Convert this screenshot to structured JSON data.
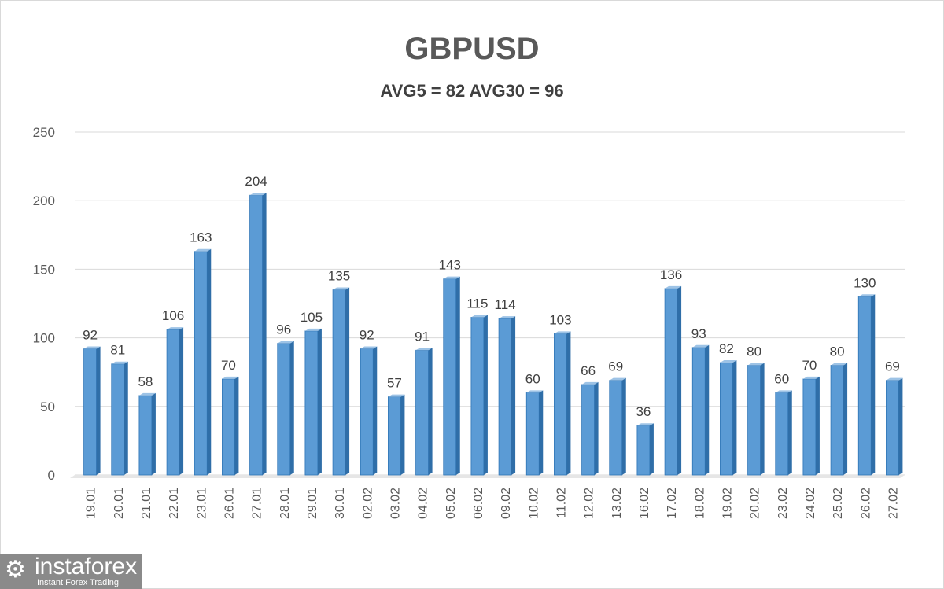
{
  "chart_data": {
    "type": "bar",
    "title": "GBPUSD",
    "subtitle": "AVG5 = 82 AVG30 = 96",
    "categories": [
      "19.01",
      "20.01",
      "21.01",
      "22.01",
      "23.01",
      "26.01",
      "27.01",
      "28.01",
      "29.01",
      "30.01",
      "02.02",
      "03.02",
      "04.02",
      "05.02",
      "06.02",
      "09.02",
      "10.02",
      "11.02",
      "12.02",
      "13.02",
      "16.02",
      "17.02",
      "18.02",
      "19.02",
      "20.02",
      "23.02",
      "24.02",
      "25.02",
      "26.02",
      "27.02"
    ],
    "values": [
      92,
      81,
      58,
      106,
      163,
      70,
      204,
      96,
      105,
      135,
      92,
      57,
      91,
      143,
      115,
      114,
      60,
      103,
      66,
      69,
      36,
      136,
      93,
      82,
      80,
      60,
      70,
      80,
      130,
      69
    ],
    "ylim": [
      0,
      250
    ],
    "yticks": [
      0,
      50,
      100,
      150,
      200,
      250
    ],
    "grid": true,
    "bar_color": "#5b9bd5"
  },
  "logo": {
    "name": "instaforex",
    "tagline": "Instant Forex Trading"
  }
}
